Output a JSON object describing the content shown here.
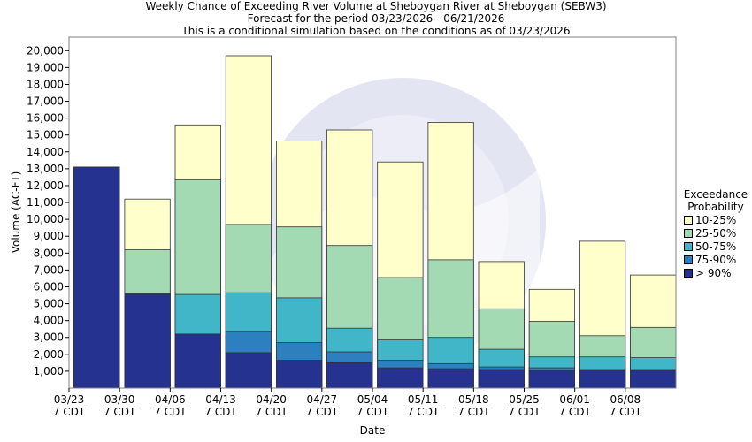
{
  "chart_data": {
    "type": "bar",
    "title": "Weekly Chance of Exceeding River Volume at Sheboygan River at Sheboygan (SEBW3)",
    "subtitle": [
      "Forecast for the period 03/23/2026 - 06/21/2026",
      "This is a conditional simulation based on the conditions as of 03/23/2026"
    ],
    "xlabel": "Date",
    "ylabel": "Volume (AC-FT)",
    "ylim": [
      0,
      20800
    ],
    "y_ticks": [
      1000,
      2000,
      3000,
      4000,
      5000,
      6000,
      7000,
      8000,
      9000,
      10000,
      11000,
      12000,
      13000,
      14000,
      15000,
      16000,
      17000,
      18000,
      19000,
      20000
    ],
    "y_tick_labels": [
      "1,000",
      "2,000",
      "3,000",
      "4,000",
      "5,000",
      "6,000",
      "7,000",
      "8,000",
      "9,000",
      "10,000",
      "11,000",
      "12,000",
      "13,000",
      "14,000",
      "15,000",
      "16,000",
      "17,000",
      "18,000",
      "19,000",
      "20,000"
    ],
    "x_ticks": [
      {
        "date": "03/23",
        "tz": "7 CDT"
      },
      {
        "date": "03/30",
        "tz": "7 CDT"
      },
      {
        "date": "04/06",
        "tz": "7 CDT"
      },
      {
        "date": "04/13",
        "tz": "7 CDT"
      },
      {
        "date": "04/20",
        "tz": "7 CDT"
      },
      {
        "date": "04/27",
        "tz": "7 CDT"
      },
      {
        "date": "05/04",
        "tz": "7 CDT"
      },
      {
        "date": "05/11",
        "tz": "7 CDT"
      },
      {
        "date": "05/18",
        "tz": "7 CDT"
      },
      {
        "date": "05/25",
        "tz": "7 CDT"
      },
      {
        "date": "06/01",
        "tz": "7 CDT"
      },
      {
        "date": "06/08",
        "tz": "7 CDT"
      }
    ],
    "grid": false,
    "legend_placement": "right",
    "legend_title": [
      "Exceedance",
      "Probability"
    ],
    "series": [
      {
        "name": "> 90%",
        "color": "#25328f",
        "values": [
          13100,
          5550,
          3200,
          2100,
          1650,
          1500,
          1200,
          1150,
          1100,
          1050,
          1050,
          1050
        ]
      },
      {
        "name": "75-90%",
        "color": "#2d80bf",
        "values": [
          13100,
          5600,
          3200,
          3350,
          2700,
          2150,
          1650,
          1450,
          1250,
          1200,
          1100,
          1100
        ]
      },
      {
        "name": "50-75%",
        "color": "#40b6c8",
        "values": [
          13100,
          5600,
          5550,
          5650,
          5350,
          3550,
          2850,
          3000,
          2300,
          1850,
          1850,
          1800
        ]
      },
      {
        "name": "25-50%",
        "color": "#a3dab4",
        "values": [
          13100,
          8200,
          12350,
          9700,
          9550,
          8450,
          6550,
          7600,
          4700,
          3950,
          3100,
          3600
        ]
      },
      {
        "name": "10-25%",
        "color": "#ffffcc",
        "values": [
          13100,
          11200,
          15600,
          19700,
          14650,
          15300,
          13400,
          15750,
          7500,
          5850,
          8700,
          6700
        ]
      }
    ],
    "legend_order": [
      "10-25%",
      "25-50%",
      "50-75%",
      "75-90%",
      "> 90%"
    ]
  }
}
